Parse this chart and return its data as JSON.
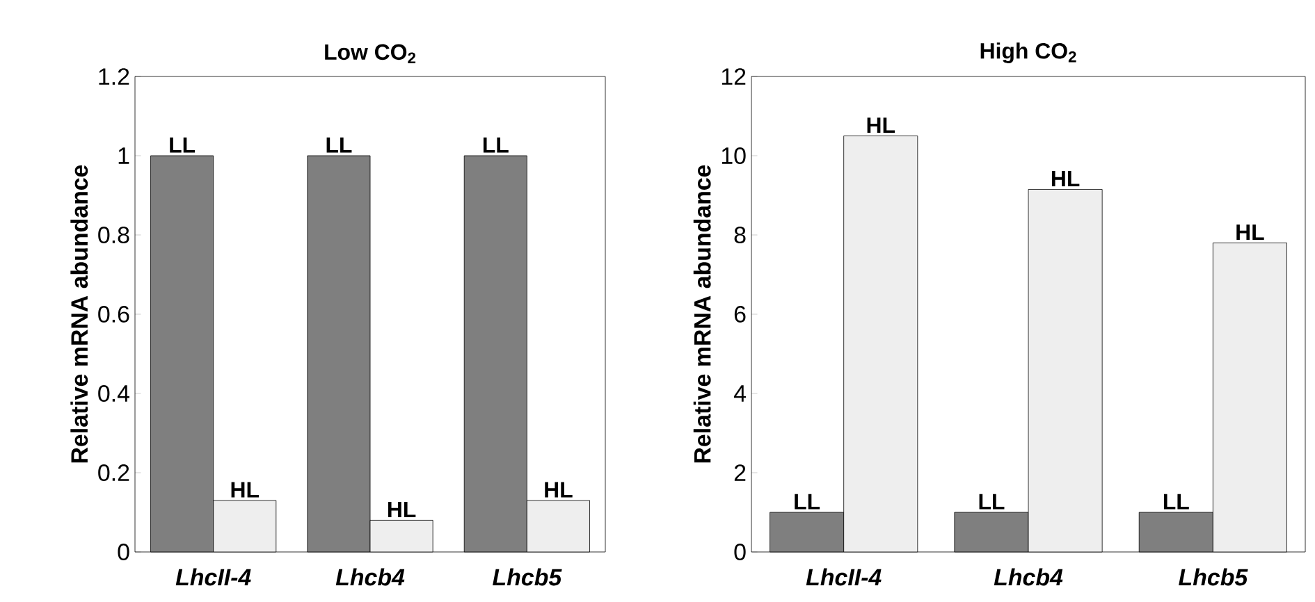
{
  "chart_data": [
    {
      "type": "bar",
      "title": "Low CO$_{2}$",
      "ylabel": "Relative mRNA abundance",
      "categories": [
        "LhcII-4",
        "Lhcb4",
        "Lhcb5"
      ],
      "series": [
        {
          "name": "LL",
          "color": "#7f7f7f",
          "values": [
            1,
            1,
            1
          ]
        },
        {
          "name": "HL",
          "color": "#eeeeee",
          "values": [
            0.13,
            0.08,
            0.13
          ]
        }
      ],
      "ylim": [
        0,
        1.2
      ],
      "yticks": [
        0,
        0.2,
        0.4,
        0.6,
        0.8,
        1,
        1.2
      ],
      "grid": false,
      "legend": false
    },
    {
      "type": "bar",
      "title": "High CO$_{2}$",
      "ylabel": "Relative mRNA abundance",
      "categories": [
        "LhcII-4",
        "Lhcb4",
        "Lhcb5"
      ],
      "series": [
        {
          "name": "LL",
          "color": "#7f7f7f",
          "values": [
            1,
            1,
            1
          ]
        },
        {
          "name": "HL",
          "color": "#eeeeee",
          "values": [
            10.5,
            9.15,
            7.8
          ]
        }
      ],
      "ylim": [
        0,
        12
      ],
      "yticks": [
        0,
        2,
        4,
        6,
        8,
        10,
        12
      ],
      "grid": false,
      "legend": false
    }
  ]
}
